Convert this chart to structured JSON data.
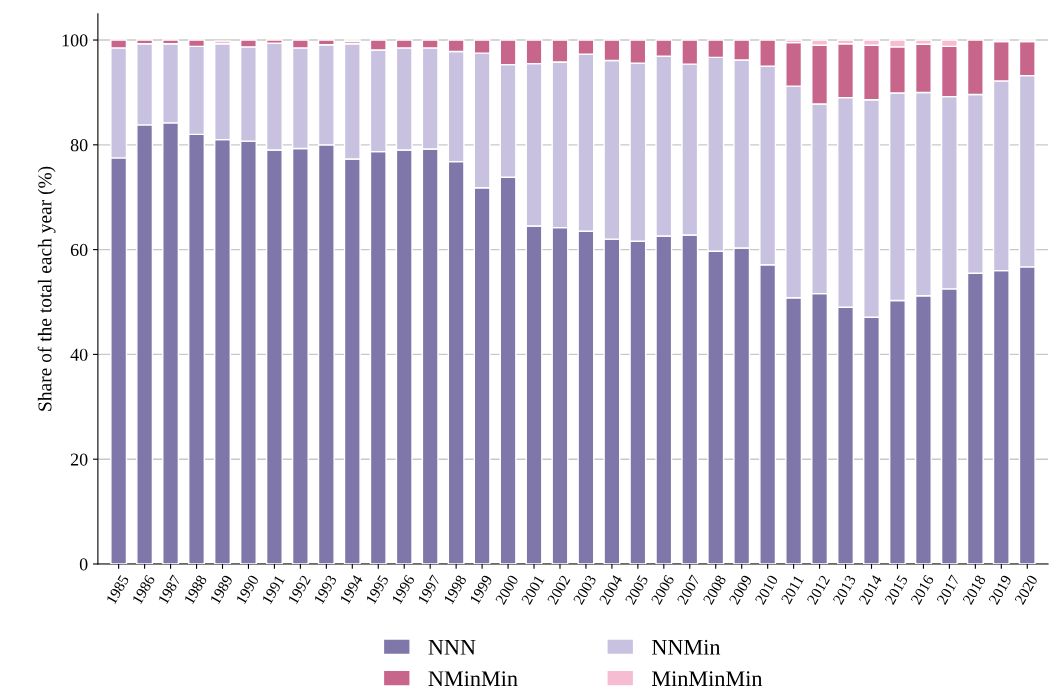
{
  "chart_data": {
    "type": "bar",
    "ylabel": "Share of the total each year (%)",
    "stacked": true,
    "categories": [
      "1985",
      "1986",
      "1987",
      "1988",
      "1989",
      "1990",
      "1991",
      "1992",
      "1993",
      "1994",
      "1995",
      "1996",
      "1997",
      "1998",
      "1999",
      "2000",
      "2001",
      "2002",
      "2003",
      "2004",
      "2005",
      "2006",
      "2007",
      "2008",
      "2009",
      "2010",
      "2011",
      "2012",
      "2013",
      "2014",
      "2015",
      "2016",
      "2017",
      "2018",
      "2019",
      "2020"
    ],
    "series": [
      {
        "name": "NNN",
        "color": "#7f77a9",
        "values": [
          77.5,
          83.8,
          84.2,
          82.0,
          81.0,
          80.7,
          79.0,
          79.3,
          80.0,
          77.3,
          78.7,
          79.0,
          79.2,
          76.8,
          71.8,
          73.8,
          64.5,
          64.2,
          63.5,
          62.0,
          61.6,
          62.6,
          62.8,
          59.7,
          60.3,
          57.1,
          50.8,
          51.6,
          49.0,
          47.1,
          50.3,
          51.2,
          52.5,
          55.5,
          56.0,
          56.7
        ]
      },
      {
        "name": "NNMin",
        "color": "#c8c2e0",
        "values": [
          21.0,
          15.5,
          15.1,
          16.8,
          18.3,
          18.0,
          20.4,
          19.2,
          19.1,
          22.0,
          19.4,
          19.5,
          19.3,
          21.0,
          25.7,
          21.5,
          31.0,
          31.6,
          33.8,
          34.1,
          34.0,
          34.3,
          32.6,
          37.0,
          35.9,
          37.9,
          40.4,
          36.2,
          40.0,
          41.5,
          39.6,
          38.8,
          36.7,
          34.1,
          36.2,
          36.5
        ]
      },
      {
        "name": "NMinMin",
        "color": "#c8658a",
        "values": [
          1.5,
          0.7,
          0.7,
          1.2,
          null,
          1.3,
          0.6,
          1.5,
          0.9,
          0.4,
          1.9,
          1.5,
          1.5,
          2.2,
          2.5,
          4.7,
          4.5,
          4.2,
          2.7,
          3.9,
          4.4,
          3.1,
          4.6,
          3.3,
          3.8,
          5.0,
          8.3,
          11.2,
          10.3,
          10.4,
          8.8,
          9.2,
          9.6,
          10.4,
          7.5,
          6.5
        ]
      },
      {
        "name": "MinMinMin",
        "color": "#f5bcd2",
        "values": [
          null,
          null,
          null,
          null,
          0.5,
          null,
          null,
          null,
          null,
          0.3,
          null,
          null,
          null,
          null,
          null,
          null,
          null,
          null,
          null,
          null,
          null,
          null,
          null,
          null,
          null,
          null,
          0.5,
          1.0,
          0.7,
          1.0,
          1.3,
          0.8,
          1.2,
          null,
          0.3,
          0.3
        ]
      }
    ],
    "ylim": [
      0,
      105
    ],
    "yticks": [
      0,
      20,
      40,
      60,
      80,
      100
    ],
    "grid": "y",
    "legend": "bottom"
  }
}
